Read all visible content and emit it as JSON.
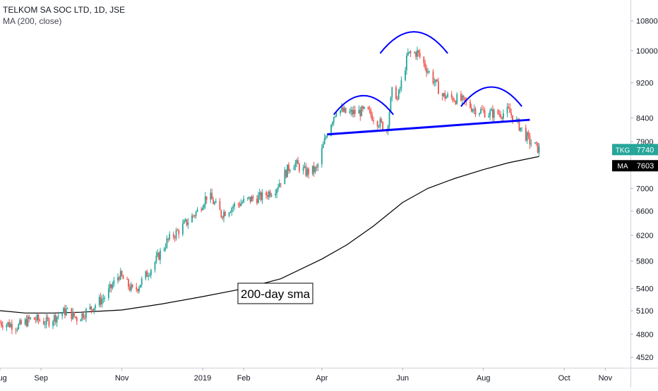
{
  "header": {
    "symbol_line": "TELKOM SA SOC LTD, 1D, JSE",
    "indicator_line": "MA (200, close)"
  },
  "y_axis": {
    "ticks": [
      "10800",
      "10000",
      "9200",
      "8400",
      "7900",
      "7400",
      "7000",
      "6600",
      "6200",
      "5800",
      "5400",
      "5100",
      "4800",
      "4520"
    ],
    "tick_values": [
      10800,
      10000,
      9200,
      8400,
      7900,
      7400,
      7000,
      6600,
      6200,
      5800,
      5400,
      5100,
      4800,
      4520
    ],
    "scale": "log"
  },
  "x_axis": {
    "ticks": [
      "Aug",
      "Sep",
      "Nov",
      "2019",
      "Feb",
      "Apr",
      "Jun",
      "Aug",
      "Oct",
      "Nov"
    ],
    "tick_dates": [
      "2018-08-01",
      "2018-09-01",
      "2018-11-01",
      "2019-01-01",
      "2019-02-01",
      "2019-04-01",
      "2019-06-01",
      "2019-08-01",
      "2019-10-01",
      "2019-11-01"
    ],
    "range": [
      "2018-08-01",
      "2019-11-20"
    ]
  },
  "price_badge": {
    "label": "TKG",
    "value": "7740",
    "color": "#26a69a"
  },
  "ma_badge": {
    "label": "MA",
    "value": "7603",
    "color": "#000000"
  },
  "annotation": {
    "text": "200-day sma"
  },
  "colors": {
    "up": "#26a69a",
    "down": "#ef5350",
    "ma": "#000000",
    "pattern": "#0000ff"
  },
  "chart_data": {
    "type": "candlestick",
    "title": "TELKOM SA SOC LTD, 1D, JSE",
    "yscale": "log",
    "ylim": [
      4400,
      11400
    ],
    "xlim": [
      "2018-08-01",
      "2019-11-20"
    ],
    "grid": false,
    "price_path": {
      "dates": [
        "2018-08-01",
        "2018-08-15",
        "2018-08-25",
        "2018-09-05",
        "2018-09-20",
        "2018-09-28",
        "2018-10-10",
        "2018-10-20",
        "2018-10-30",
        "2018-11-10",
        "2018-11-25",
        "2018-12-05",
        "2018-12-15",
        "2018-12-28",
        "2019-01-05",
        "2019-01-15",
        "2019-01-25",
        "2019-02-05",
        "2019-02-15",
        "2019-02-25",
        "2019-03-10",
        "2019-03-20",
        "2019-03-28",
        "2019-04-05",
        "2019-04-12",
        "2019-04-20",
        "2019-05-05",
        "2019-05-20",
        "2019-05-25",
        "2019-05-28",
        "2019-06-05",
        "2019-06-12",
        "2019-06-20",
        "2019-07-01",
        "2019-07-15",
        "2019-07-25",
        "2019-08-05",
        "2019-08-15",
        "2019-08-20",
        "2019-08-25",
        "2019-08-30",
        "2019-09-05",
        "2019-09-12"
      ],
      "close": [
        4950,
        4900,
        5000,
        4950,
        5100,
        5000,
        5150,
        5300,
        5600,
        5350,
        5750,
        6100,
        6300,
        6600,
        6900,
        6550,
        6700,
        6800,
        6850,
        7000,
        7500,
        7300,
        7350,
        8100,
        8600,
        8500,
        8550,
        8150,
        9200,
        8800,
        9900,
        9950,
        9500,
        8900,
        8800,
        8600,
        8500,
        8500,
        8550,
        8350,
        8150,
        7900,
        7740
      ]
    },
    "series": [
      {
        "name": "MA",
        "dates": [
          "2018-08-01",
          "2018-08-20",
          "2018-09-10",
          "2018-10-01",
          "2018-11-01",
          "2018-12-01",
          "2019-01-01",
          "2019-02-01",
          "2019-03-01",
          "2019-04-01",
          "2019-04-20",
          "2019-05-10",
          "2019-06-01",
          "2019-06-20",
          "2019-07-10",
          "2019-08-01",
          "2019-08-20",
          "2019-09-12"
        ],
        "values": [
          5100,
          5070,
          5070,
          5080,
          5110,
          5190,
          5290,
          5400,
          5540,
          5830,
          6050,
          6350,
          6750,
          7000,
          7180,
          7350,
          7480,
          7603
        ]
      }
    ],
    "annotations": [
      {
        "text": "200-day sma"
      }
    ],
    "drawings": {
      "neckline": [
        [
          "2019-04-05",
          8050
        ],
        [
          "2019-09-05",
          8360
        ]
      ],
      "left_shoulder_arc": {
        "from": "2019-04-10",
        "to": "2019-05-25",
        "peak_value": 8900
      },
      "head_arc": {
        "from": "2019-05-15",
        "to": "2019-07-05",
        "peak_value": 10500
      },
      "right_shoulder_arc": {
        "from": "2019-07-15",
        "to": "2019-08-30",
        "peak_value": 9100
      }
    }
  }
}
